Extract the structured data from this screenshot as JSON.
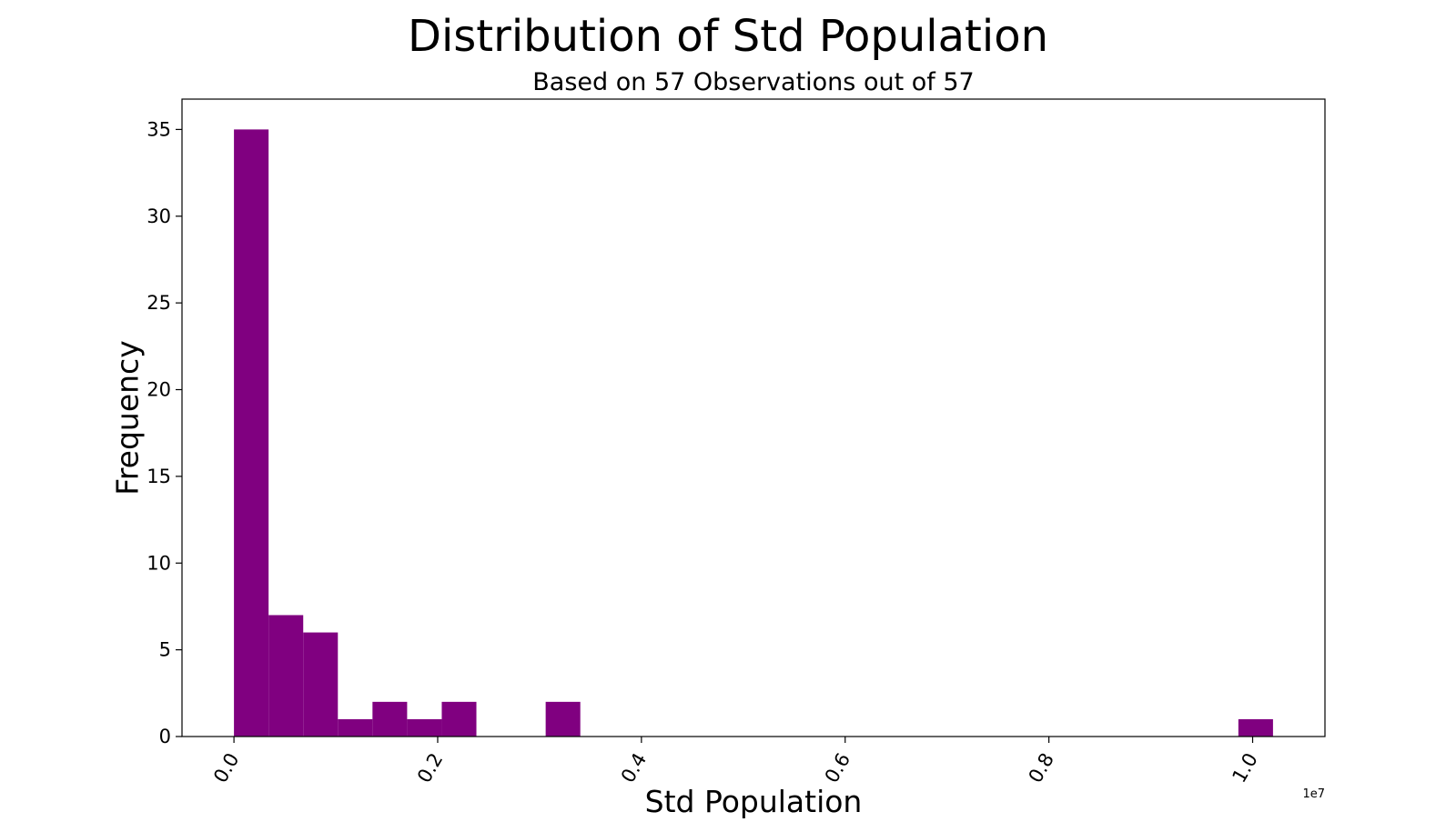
{
  "chart_data": {
    "type": "bar",
    "title": "Distribution of Std Population",
    "subtitle": "Based on 57 Observations out of 57",
    "xlabel": "Std Population",
    "ylabel": "Frequency",
    "x_offset_label": "1e7",
    "bar_color": "#800080",
    "bin_edges": [
      0,
      340000,
      680000,
      1020000,
      1360000,
      1700000,
      2040000,
      2380000,
      2720000,
      3060000,
      3400000,
      3740000,
      4080000,
      4420000,
      4760000,
      5100000,
      5440000,
      5780000,
      6120000,
      6460000,
      6800000,
      7140000,
      7480000,
      7820000,
      8160000,
      8500000,
      8840000,
      9180000,
      9520000,
      9860000,
      10200000
    ],
    "counts": [
      35,
      7,
      6,
      1,
      2,
      1,
      2,
      0,
      0,
      2,
      0,
      0,
      0,
      0,
      0,
      0,
      0,
      0,
      0,
      0,
      0,
      0,
      0,
      0,
      0,
      0,
      0,
      0,
      0,
      1
    ],
    "x_ticks": [
      0,
      2000000,
      4000000,
      6000000,
      8000000,
      10000000
    ],
    "x_tick_labels": [
      "0.0",
      "0.2",
      "0.4",
      "0.6",
      "0.8",
      "1.0"
    ],
    "y_ticks": [
      0,
      5,
      10,
      15,
      20,
      25,
      30,
      35
    ],
    "y_tick_labels": [
      "0",
      "5",
      "10",
      "15",
      "20",
      "25",
      "30",
      "35"
    ],
    "xlim": [
      -510000,
      10710000
    ],
    "ylim": [
      0,
      36.75
    ],
    "grid": false,
    "legend": "none"
  }
}
